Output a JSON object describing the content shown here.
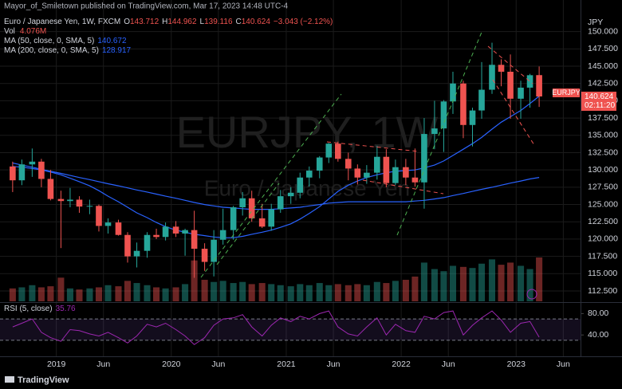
{
  "chart_data": {
    "type": "candlestick",
    "publisher": "Mayor_of_Smiletown published on TradingView.com, Mar 17, 2023 14:48 UTC-4",
    "title": "Euro / Japanese Yen, 1W, FXCM",
    "ohlc_prefixes": [
      "O",
      "H",
      "L",
      "C"
    ],
    "change": "−3.043 (−2.12%)",
    "watermark": "EURJPY, 1W",
    "watermark_subtitle": "Euro / Japanese Yen",
    "symbol": "EURJPY",
    "countdown": "02:11:20",
    "unit": "JPY",
    "footer": "TradingView",
    "up_color": "#26a69a",
    "down_color": "#ef5350",
    "grid": true,
    "x": [
      2018.62,
      2018.7,
      2018.79,
      2018.87,
      2018.95,
      2019.04,
      2019.12,
      2019.2,
      2019.29,
      2019.37,
      2019.45,
      2019.54,
      2019.62,
      2019.7,
      2019.79,
      2019.87,
      2019.95,
      2020.04,
      2020.12,
      2020.2,
      2020.29,
      2020.37,
      2020.45,
      2020.54,
      2020.62,
      2020.7,
      2020.79,
      2020.87,
      2020.95,
      2021.04,
      2021.12,
      2021.2,
      2021.29,
      2021.37,
      2021.45,
      2021.54,
      2021.62,
      2021.7,
      2021.79,
      2021.87,
      2021.95,
      2022.04,
      2022.12,
      2022.2,
      2022.29,
      2022.37,
      2022.45,
      2022.54,
      2022.62,
      2022.7,
      2022.79,
      2022.87,
      2022.95,
      2023.04,
      2023.12,
      2023.2
    ],
    "candles": {
      "open": [
        130.5,
        128.5,
        130.8,
        131.2,
        128.7,
        125.8,
        125.5,
        125.7,
        124.7,
        124.8,
        121.9,
        122.4,
        120.6,
        117.5,
        118.3,
        120.6,
        120.3,
        121.8,
        120.8,
        121.3,
        118.6,
        116.7,
        119.9,
        121.3,
        124.6,
        125.9,
        123.0,
        121.8,
        124.3,
        126.2,
        126.7,
        128.9,
        129.9,
        131.8,
        133.8,
        131.6,
        130.2,
        128.9,
        129.6,
        131.9,
        128.1,
        130.4,
        128.9,
        128.2,
        135.2,
        136.0,
        139.9,
        142.5,
        136.5,
        138.6,
        141.6,
        145.2,
        144.2,
        140.3,
        141.9,
        143.712
      ],
      "high": [
        131.2,
        131.5,
        133.1,
        131.6,
        130.0,
        127.0,
        127.4,
        126.2,
        125.7,
        125.0,
        123.0,
        122.8,
        121.0,
        119.5,
        121.0,
        121.5,
        122.4,
        122.6,
        121.5,
        124.1,
        119.4,
        121.3,
        124.4,
        124.8,
        126.8,
        127.0,
        125.1,
        125.1,
        127.1,
        127.5,
        129.6,
        130.5,
        132.0,
        133.9,
        134.1,
        132.5,
        130.8,
        130.7,
        133.5,
        133.0,
        131.5,
        131.6,
        133.1,
        137.5,
        140.0,
        140.1,
        144.2,
        142.9,
        139.0,
        145.6,
        148.4,
        146.0,
        146.7,
        142.9,
        143.9,
        144.962
      ],
      "low": [
        126.8,
        127.8,
        129.0,
        127.5,
        125.6,
        118.7,
        124.6,
        123.8,
        123.6,
        121.1,
        120.8,
        120.5,
        116.6,
        115.9,
        117.3,
        120.0,
        119.8,
        120.3,
        117.6,
        114.4,
        115.4,
        114.6,
        119.2,
        119.9,
        123.4,
        122.5,
        121.6,
        121.2,
        123.8,
        125.1,
        125.9,
        127.6,
        128.8,
        131.0,
        131.2,
        128.5,
        127.9,
        128.0,
        128.6,
        127.5,
        127.8,
        127.8,
        127.6,
        124.4,
        133.0,
        132.6,
        138.1,
        134.6,
        133.4,
        137.4,
        141.0,
        142.1,
        137.4,
        137.4,
        139.0,
        139.116
      ],
      "close": [
        128.5,
        130.8,
        131.2,
        128.7,
        125.8,
        125.5,
        125.7,
        124.7,
        124.8,
        121.9,
        122.4,
        120.6,
        117.5,
        118.3,
        120.6,
        120.3,
        121.8,
        120.8,
        121.3,
        118.6,
        116.7,
        119.9,
        121.3,
        124.6,
        125.9,
        123.0,
        121.8,
        124.3,
        126.2,
        126.7,
        128.9,
        129.9,
        131.8,
        133.8,
        131.6,
        130.2,
        128.9,
        129.6,
        131.9,
        128.1,
        130.4,
        128.9,
        128.2,
        135.2,
        136.0,
        139.9,
        142.5,
        136.5,
        138.6,
        141.6,
        145.2,
        144.2,
        140.3,
        141.9,
        143.7,
        140.624
      ]
    },
    "series": [
      {
        "name": "MA (50, close, 0, SMA, 5)",
        "color": "#2962ff",
        "values": [
          130.5,
          130.4,
          130.2,
          130.0,
          129.7,
          129.3,
          128.8,
          128.3,
          127.7,
          127.0,
          126.2,
          125.4,
          124.6,
          123.8,
          123.1,
          122.4,
          121.8,
          121.3,
          121.0,
          120.7,
          120.5,
          120.3,
          120.2,
          120.2,
          120.4,
          120.7,
          121.0,
          121.3,
          121.7,
          122.2,
          122.9,
          123.7,
          124.7,
          125.8,
          126.9,
          127.8,
          128.4,
          128.9,
          129.3,
          129.6,
          129.8,
          129.9,
          130.0,
          130.3,
          130.7,
          131.3,
          132.1,
          133.0,
          133.8,
          134.7,
          135.9,
          136.9,
          137.7,
          138.6,
          139.6,
          140.672
        ]
      },
      {
        "name": "MA (200, close, 0, SMA, 5)",
        "color": "#2962ff",
        "values": [
          131.0,
          130.7,
          130.4,
          130.1,
          129.8,
          129.5,
          129.2,
          128.9,
          128.6,
          128.3,
          128.0,
          127.7,
          127.4,
          127.1,
          126.8,
          126.5,
          126.2,
          125.9,
          125.6,
          125.3,
          125.0,
          124.8,
          124.6,
          124.5,
          124.4,
          124.3,
          124.3,
          124.3,
          124.4,
          124.5,
          124.6,
          124.8,
          125.0,
          125.2,
          125.3,
          125.4,
          125.4,
          125.4,
          125.4,
          125.4,
          125.4,
          125.4,
          125.5,
          125.6,
          125.8,
          126.0,
          126.3,
          126.6,
          126.9,
          127.2,
          127.5,
          127.8,
          128.1,
          128.4,
          128.7,
          128.917
        ]
      }
    ],
    "volume": {
      "name": "Vol",
      "value_label": "4.076M",
      "values": [
        1.2,
        1.3,
        1.5,
        1.3,
        1.4,
        2.2,
        1.2,
        1.1,
        1.2,
        1.3,
        1.5,
        1.4,
        1.9,
        1.7,
        1.5,
        1.3,
        1.2,
        1.3,
        1.6,
        3.8,
        2.0,
        1.8,
        1.9,
        1.7,
        1.8,
        1.6,
        1.7,
        1.6,
        1.5,
        1.4,
        1.6,
        1.5,
        1.7,
        1.5,
        1.6,
        1.5,
        1.6,
        1.5,
        1.8,
        1.7,
        1.9,
        2.0,
        2.3,
        3.6,
        3.0,
        2.8,
        3.3,
        3.2,
        3.1,
        3.5,
        3.9,
        3.4,
        3.6,
        3.3,
        3.0,
        4.076
      ]
    },
    "rsi": {
      "name": "RSI (5, close)",
      "color": "#9c27b0",
      "ylim": [
        0,
        100
      ],
      "band": [
        30,
        70
      ],
      "yticks": [
        {
          "value": 80,
          "label": "80.00"
        },
        {
          "value": 40,
          "label": "40.00"
        }
      ],
      "values": [
        55,
        62,
        70,
        45,
        35,
        28,
        50,
        48,
        42,
        38,
        45,
        35,
        25,
        38,
        60,
        55,
        62,
        50,
        38,
        22,
        35,
        58,
        70,
        72,
        78,
        55,
        38,
        58,
        72,
        65,
        75,
        70,
        80,
        85,
        55,
        42,
        38,
        55,
        72,
        40,
        60,
        48,
        45,
        75,
        70,
        82,
        85,
        40,
        58,
        72,
        85,
        68,
        45,
        62,
        65,
        35.76
      ]
    },
    "xlim": [
      2018.51,
      2023.56
    ],
    "xticks": [
      2019,
      {
        "value": 2019.41,
        "label": "Jun"
      },
      2020,
      {
        "value": 2020.41,
        "label": "Jun"
      },
      2021,
      {
        "value": 2021.41,
        "label": "Jun"
      },
      2022,
      {
        "value": 2022.41,
        "label": "Jun"
      },
      2023,
      {
        "value": 2023.41,
        "label": "Jun"
      }
    ],
    "ylim": [
      111,
      152.5
    ],
    "yticks": [
      {
        "value": 112.5,
        "label": "112.500"
      },
      {
        "value": 115,
        "label": "115.000"
      },
      {
        "value": 117.5,
        "label": "117.500"
      },
      {
        "value": 120,
        "label": "120.000"
      },
      {
        "value": 122.5,
        "label": "122.500"
      },
      {
        "value": 125,
        "label": "125.000"
      },
      {
        "value": 127.5,
        "label": "127.500"
      },
      {
        "value": 130,
        "label": "130.000"
      },
      {
        "value": 132.5,
        "label": "132.500"
      },
      {
        "value": 135,
        "label": "135.000"
      },
      {
        "value": 137.5,
        "label": "137.500"
      },
      {
        "value": 140,
        "label": "140.000"
      },
      {
        "value": 142.5,
        "label": "142.500"
      },
      {
        "value": 145,
        "label": "145.000"
      },
      {
        "value": 147.5,
        "label": "147.500"
      },
      {
        "value": 150,
        "label": "150.000"
      }
    ]
  }
}
